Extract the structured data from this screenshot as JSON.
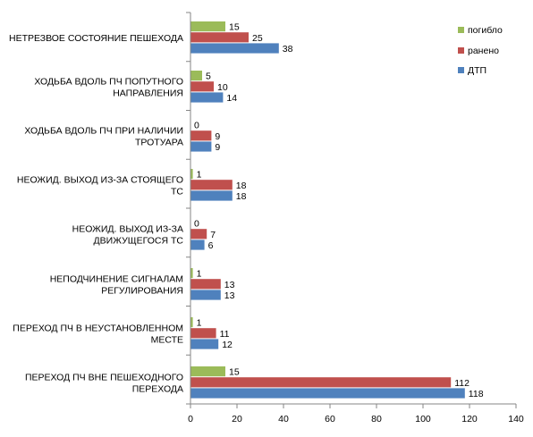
{
  "chart_data": {
    "type": "bar",
    "orientation": "horizontal",
    "categories": [
      [
        "НЕТРЕЗВОЕ СОСТОЯНИЕ ПЕШЕХОДА"
      ],
      [
        "ХОДЬБА ВДОЛЬ ПЧ ПОПУТНОГО",
        "НАПРАВЛЕНИЯ"
      ],
      [
        "ХОДЬБА ВДОЛЬ ПЧ ПРИ НАЛИЧИИ",
        "ТРОТУАРА"
      ],
      [
        "НЕОЖИД. ВЫХОД ИЗ-ЗА СТОЯЩЕГО",
        "ТС"
      ],
      [
        "НЕОЖИД. ВЫХОД ИЗ-ЗА",
        "ДВИЖУЩЕГОСЯ ТС"
      ],
      [
        "НЕПОДЧИНЕНИЕ СИГНАЛАМ",
        "РЕГУЛИРОВАНИЯ"
      ],
      [
        "ПЕРЕХОД ПЧ В НЕУСТАНОВЛЕННОМ",
        "МЕСТЕ"
      ],
      [
        "ПЕРЕХОД ПЧ ВНЕ ПЕШЕХОДНОГО",
        "ПЕРЕХОДА"
      ]
    ],
    "series": [
      {
        "name": "погибло",
        "color": "#9bbb59",
        "values": [
          15,
          5,
          0,
          1,
          0,
          1,
          1,
          15
        ]
      },
      {
        "name": "ранено",
        "color": "#c0504d",
        "values": [
          25,
          10,
          9,
          18,
          7,
          13,
          11,
          112
        ]
      },
      {
        "name": "ДТП",
        "color": "#4f81bd",
        "values": [
          38,
          14,
          9,
          18,
          6,
          13,
          12,
          118
        ]
      }
    ],
    "xlim": [
      0,
      140
    ],
    "xticks": [
      "0",
      "20",
      "40",
      "60",
      "80",
      "100",
      "120",
      "140"
    ],
    "data_labels": true,
    "grid": false,
    "legend": "right"
  }
}
